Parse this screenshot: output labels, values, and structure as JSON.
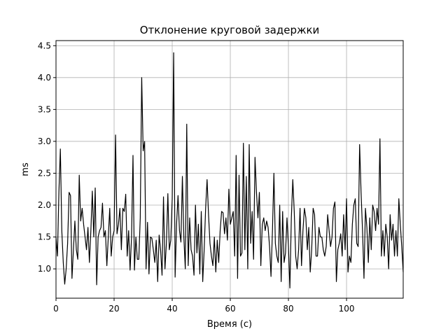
{
  "chart_data": {
    "type": "line",
    "title": "Отклонение круговой задержки",
    "x_label": "Время (с)",
    "y_label": "ms",
    "x": [
      0,
      0.5,
      1,
      1.5,
      2,
      2.5,
      3,
      3.5,
      4,
      4.5,
      5,
      5.5,
      6,
      6.5,
      7,
      7.5,
      8,
      8.5,
      9,
      9.5,
      10,
      10.5,
      11,
      11.5,
      12,
      12.5,
      13,
      13.5,
      14,
      14.5,
      15,
      15.5,
      16,
      16.5,
      17,
      17.5,
      18,
      18.5,
      19,
      19.5,
      20,
      20.5,
      21,
      21.5,
      22,
      22.5,
      23,
      23.5,
      24,
      24.5,
      25,
      25.5,
      26,
      26.5,
      27,
      27.5,
      28,
      28.5,
      29,
      29.5,
      30,
      30.5,
      31,
      31.5,
      32,
      32.5,
      33,
      33.5,
      34,
      34.5,
      35,
      35.5,
      36,
      36.5,
      37,
      37.5,
      38,
      38.5,
      39,
      39.5,
      40,
      40.5,
      41,
      41.5,
      42,
      42.5,
      43,
      43.5,
      44,
      44.5,
      45,
      45.5,
      46,
      46.5,
      47,
      47.5,
      48,
      48.5,
      49,
      49.5,
      50,
      50.5,
      51,
      51.5,
      52,
      52.5,
      53,
      53.5,
      54,
      54.5,
      55,
      55.5,
      56,
      56.5,
      57,
      57.5,
      58,
      58.5,
      59,
      59.5,
      60,
      60.5,
      61,
      61.5,
      62,
      62.5,
      63,
      63.5,
      64,
      64.5,
      65,
      65.5,
      66,
      66.5,
      67,
      67.5,
      68,
      68.5,
      69,
      69.5,
      70,
      70.5,
      71,
      71.5,
      72,
      72.5,
      73,
      73.5,
      74,
      74.5,
      75,
      75.5,
      76,
      76.5,
      77,
      77.5,
      78,
      78.5,
      79,
      79.5,
      80,
      80.5,
      81,
      81.5,
      82,
      82.5,
      83,
      83.5,
      84,
      84.5,
      85,
      85.5,
      86,
      86.5,
      87,
      87.5,
      88,
      88.5,
      89,
      89.5,
      90,
      90.5,
      91,
      91.5,
      92,
      92.5,
      93,
      93.5,
      94,
      94.5,
      95,
      95.5,
      96,
      96.5,
      97,
      97.5,
      98,
      98.5,
      99,
      99.5,
      100,
      100.5,
      101,
      101.5,
      102,
      102.5,
      103,
      103.5,
      104,
      104.5,
      105,
      105.5,
      106,
      106.5,
      107,
      107.5,
      108,
      108.5,
      109,
      109.5,
      110,
      110.5,
      111,
      111.5,
      112,
      112.5,
      113,
      113.5,
      114,
      114.5,
      115,
      115.5,
      116,
      116.5,
      117,
      117.5,
      118,
      118.5,
      119,
      119.5
    ],
    "series": [
      {
        "color": "#000000",
        "values": [
          1.5,
          1.2,
          2.2,
          2.88,
          1.6,
          1.1,
          0.76,
          1.0,
          1.4,
          2.2,
          2.15,
          0.85,
          1.3,
          1.75,
          1.3,
          1.15,
          2.47,
          1.75,
          1.95,
          1.7,
          1.5,
          1.3,
          1.65,
          1.1,
          1.6,
          2.22,
          1.5,
          2.27,
          0.75,
          1.5,
          1.6,
          1.65,
          2.03,
          1.5,
          1.6,
          1.05,
          1.5,
          1.95,
          1.2,
          1.5,
          1.6,
          3.1,
          1.55,
          1.7,
          1.95,
          1.3,
          1.95,
          1.9,
          2.17,
          1.2,
          1.6,
          0.98,
          1.5,
          2.78,
          0.98,
          1.5,
          1.15,
          1.15,
          1.8,
          4.0,
          2.85,
          3.0,
          1.0,
          1.73,
          0.92,
          1.5,
          1.48,
          1.3,
          1.1,
          1.45,
          0.8,
          1.53,
          1.3,
          0.9,
          2.13,
          1.0,
          1.4,
          2.18,
          1.3,
          1.45,
          2.1,
          4.39,
          0.87,
          1.7,
          2.15,
          1.6,
          1.42,
          2.45,
          1.5,
          1.0,
          3.27,
          1.05,
          1.8,
          1.3,
          1.2,
          0.9,
          2.0,
          1.25,
          1.7,
          0.92,
          1.9,
          0.8,
          1.3,
          1.95,
          2.4,
          1.85,
          1.4,
          1.2,
          1.05,
          1.5,
          0.95,
          1.45,
          1.1,
          1.6,
          1.9,
          1.88,
          1.55,
          1.8,
          1.45,
          2.25,
          1.7,
          1.8,
          1.9,
          1.2,
          2.78,
          0.85,
          2.47,
          1.2,
          1.25,
          2.97,
          1.3,
          2.45,
          1.0,
          2.95,
          1.4,
          1.9,
          1.15,
          2.75,
          2.2,
          1.8,
          2.2,
          1.05,
          1.7,
          1.8,
          1.6,
          1.75,
          1.65,
          1.35,
          0.88,
          1.6,
          2.5,
          1.4,
          1.2,
          1.1,
          2.0,
          0.8,
          1.9,
          1.1,
          1.25,
          1.8,
          1.35,
          0.7,
          1.8,
          2.4,
          1.9,
          1.2,
          1.0,
          1.3,
          1.95,
          1.05,
          1.6,
          1.95,
          1.8,
          1.3,
          1.65,
          0.95,
          1.3,
          1.95,
          1.85,
          1.2,
          1.2,
          1.65,
          1.5,
          1.5,
          1.3,
          1.2,
          1.35,
          1.85,
          1.6,
          1.35,
          1.5,
          1.95,
          2.05,
          0.8,
          1.3,
          1.4,
          1.55,
          1.2,
          1.85,
          1.3,
          2.1,
          0.95,
          1.2,
          1.1,
          1.7,
          2.0,
          2.1,
          1.4,
          1.35,
          2.95,
          2.2,
          1.6,
          0.85,
          1.95,
          1.65,
          1.1,
          1.8,
          1.3,
          2.0,
          1.9,
          1.6,
          1.95,
          1.7,
          3.04,
          1.2,
          1.6,
          1.2,
          1.7,
          1.5,
          1.0,
          1.85,
          1.45,
          1.7,
          1.2,
          1.6,
          1.2,
          2.1,
          1.7,
          1.35,
          0.95
        ]
      }
    ],
    "xlim": [
      0,
      119.5
    ],
    "ylim": [
      0.54,
      4.58
    ],
    "xticks": [
      0,
      20,
      40,
      60,
      80,
      100
    ],
    "yticks": [
      {
        "value": 1,
        "label": "1.0"
      },
      1.5,
      {
        "value": 2,
        "label": "2.0"
      },
      2.5,
      {
        "value": 3,
        "label": "3.0"
      },
      3.5,
      {
        "value": 4,
        "label": "4.0"
      },
      4.5
    ],
    "grid": true
  }
}
